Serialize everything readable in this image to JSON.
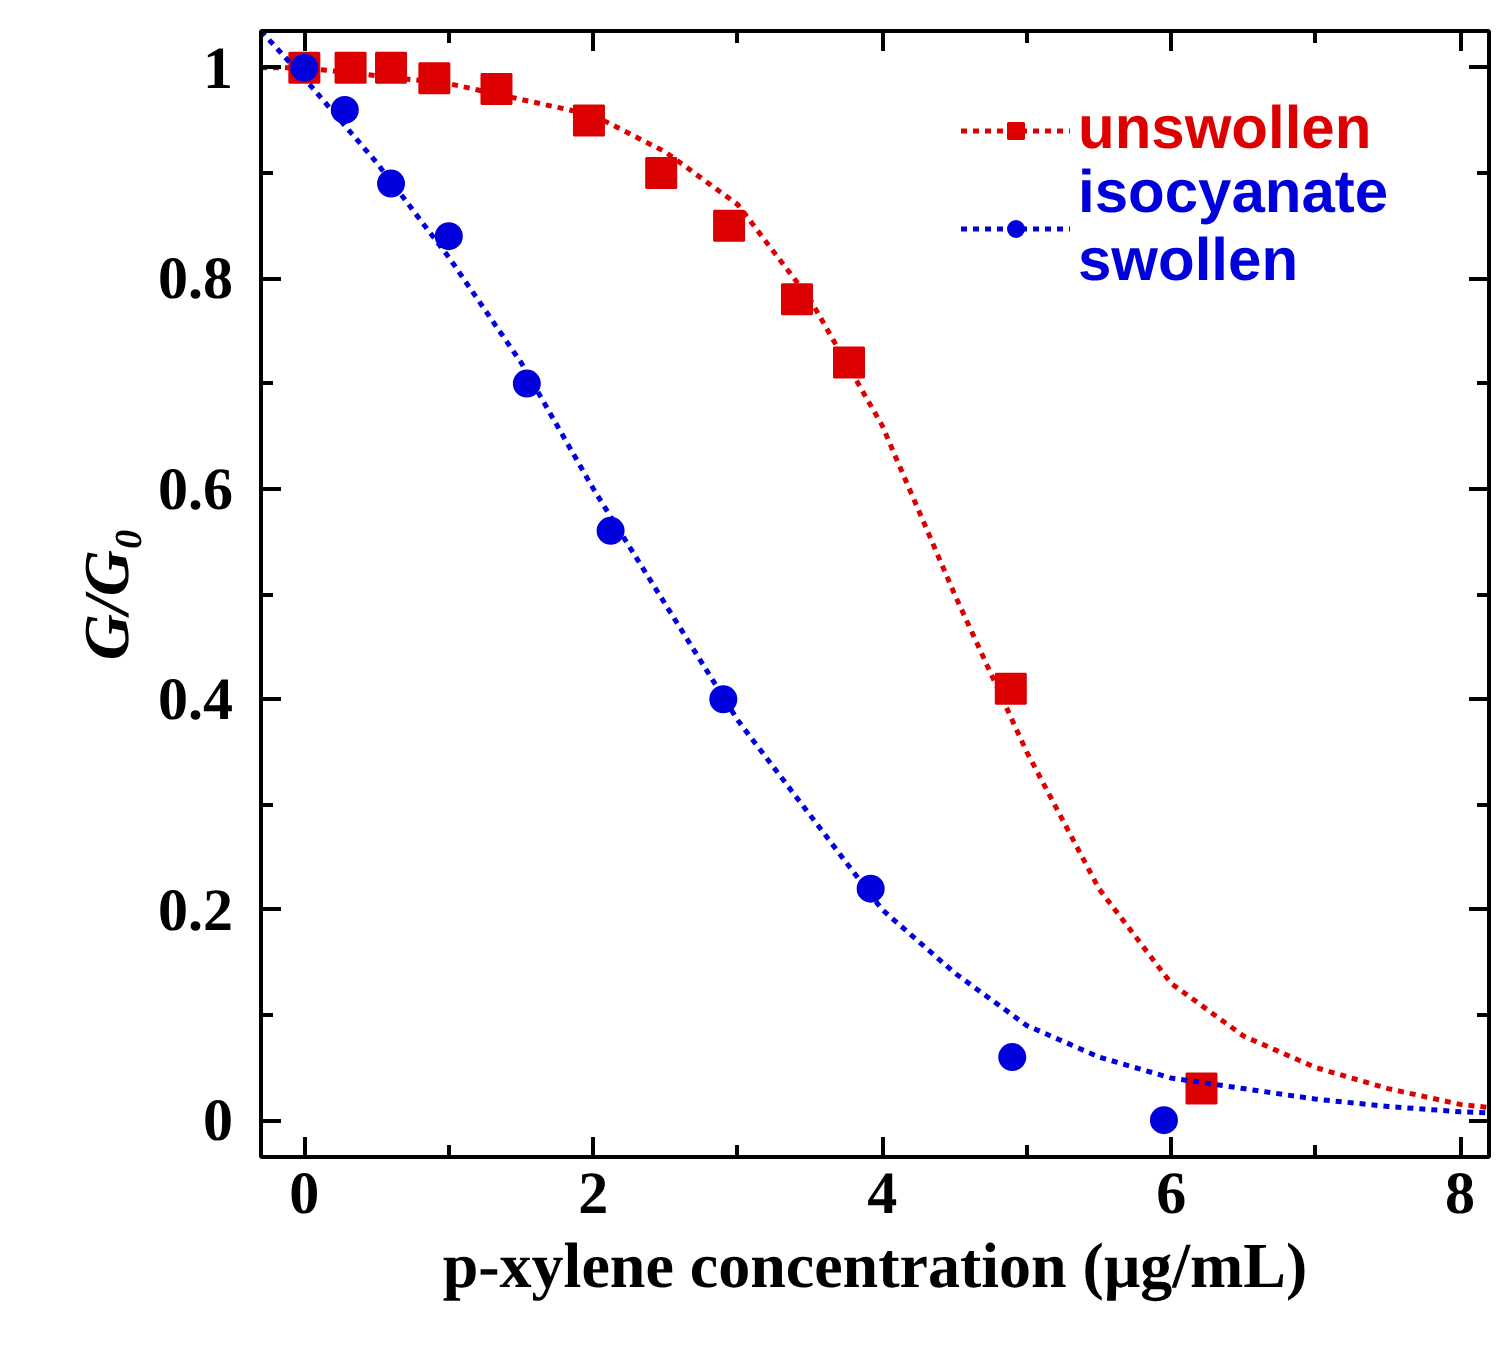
{
  "chart_data": {
    "type": "scatter",
    "xlabel": "p-xylene concentration (μg/mL)",
    "ylabel": "G/G₀",
    "xlim": [
      -0.3,
      8.2
    ],
    "ylim": [
      -0.035,
      1.035
    ],
    "xticks": [
      0,
      {
        "value": 1,
        "label": null
      },
      2,
      {
        "value": 3,
        "label": null
      },
      4,
      {
        "value": 5,
        "label": null
      },
      6,
      {
        "value": 7,
        "label": null
      },
      8
    ],
    "yticks": [
      0,
      {
        "value": 0.1,
        "label": null
      },
      0.2,
      {
        "value": 0.3,
        "label": null
      },
      0.4,
      {
        "value": 0.5,
        "label": null
      },
      0.6,
      {
        "value": 0.7,
        "label": null
      },
      0.8,
      {
        "value": 0.9,
        "label": null
      },
      1
    ],
    "legend": "top right",
    "grid": false,
    "series": [
      {
        "name": "unswollen",
        "marker": "square",
        "color": "#dd0000",
        "x": [
          0,
          0.32,
          0.6,
          0.9,
          1.33,
          1.97,
          2.47,
          2.94,
          3.41,
          3.77,
          4.89,
          6.21
        ],
        "values": [
          1,
          1,
          1,
          0.99,
          0.98,
          0.95,
          0.9,
          0.85,
          0.78,
          0.72,
          0.41,
          0.03
        ]
      },
      {
        "type": "line",
        "line_style": "dashed",
        "color": "#dd0000",
        "x": [
          -0.3,
          0,
          1,
          2,
          2.5,
          3,
          3.5,
          4,
          4.5,
          5,
          5.5,
          6,
          6.5,
          7,
          7.5,
          8,
          8.2
        ],
        "values": [
          1,
          1,
          0.985,
          0.955,
          0.92,
          0.87,
          0.78,
          0.66,
          0.5,
          0.35,
          0.22,
          0.13,
          0.08,
          0.05,
          0.03,
          0.015,
          0.012
        ]
      },
      {
        "name": "isocyanate swollen",
        "marker": "circle",
        "color": "#0000dd",
        "x": [
          0,
          0.28,
          0.6,
          1.0,
          1.54,
          2.12,
          2.9,
          3.92,
          4.9,
          5.95
        ],
        "values": [
          1,
          0.96,
          0.89,
          0.84,
          0.7,
          0.56,
          0.4,
          0.22,
          0.06,
          0
        ]
      },
      {
        "type": "line",
        "line_style": "dashed",
        "color": "#0000dd",
        "x": [
          -0.3,
          0,
          0.5,
          1,
          1.5,
          2,
          2.5,
          3,
          3.5,
          4,
          4.5,
          5,
          5.5,
          6,
          6.5,
          7,
          7.5,
          8,
          8.2
        ],
        "values": [
          1.035,
          0.99,
          0.91,
          0.82,
          0.72,
          0.6,
          0.49,
          0.38,
          0.29,
          0.2,
          0.14,
          0.09,
          0.06,
          0.04,
          0.03,
          0.02,
          0.013,
          0.008,
          0.007
        ]
      }
    ]
  }
}
